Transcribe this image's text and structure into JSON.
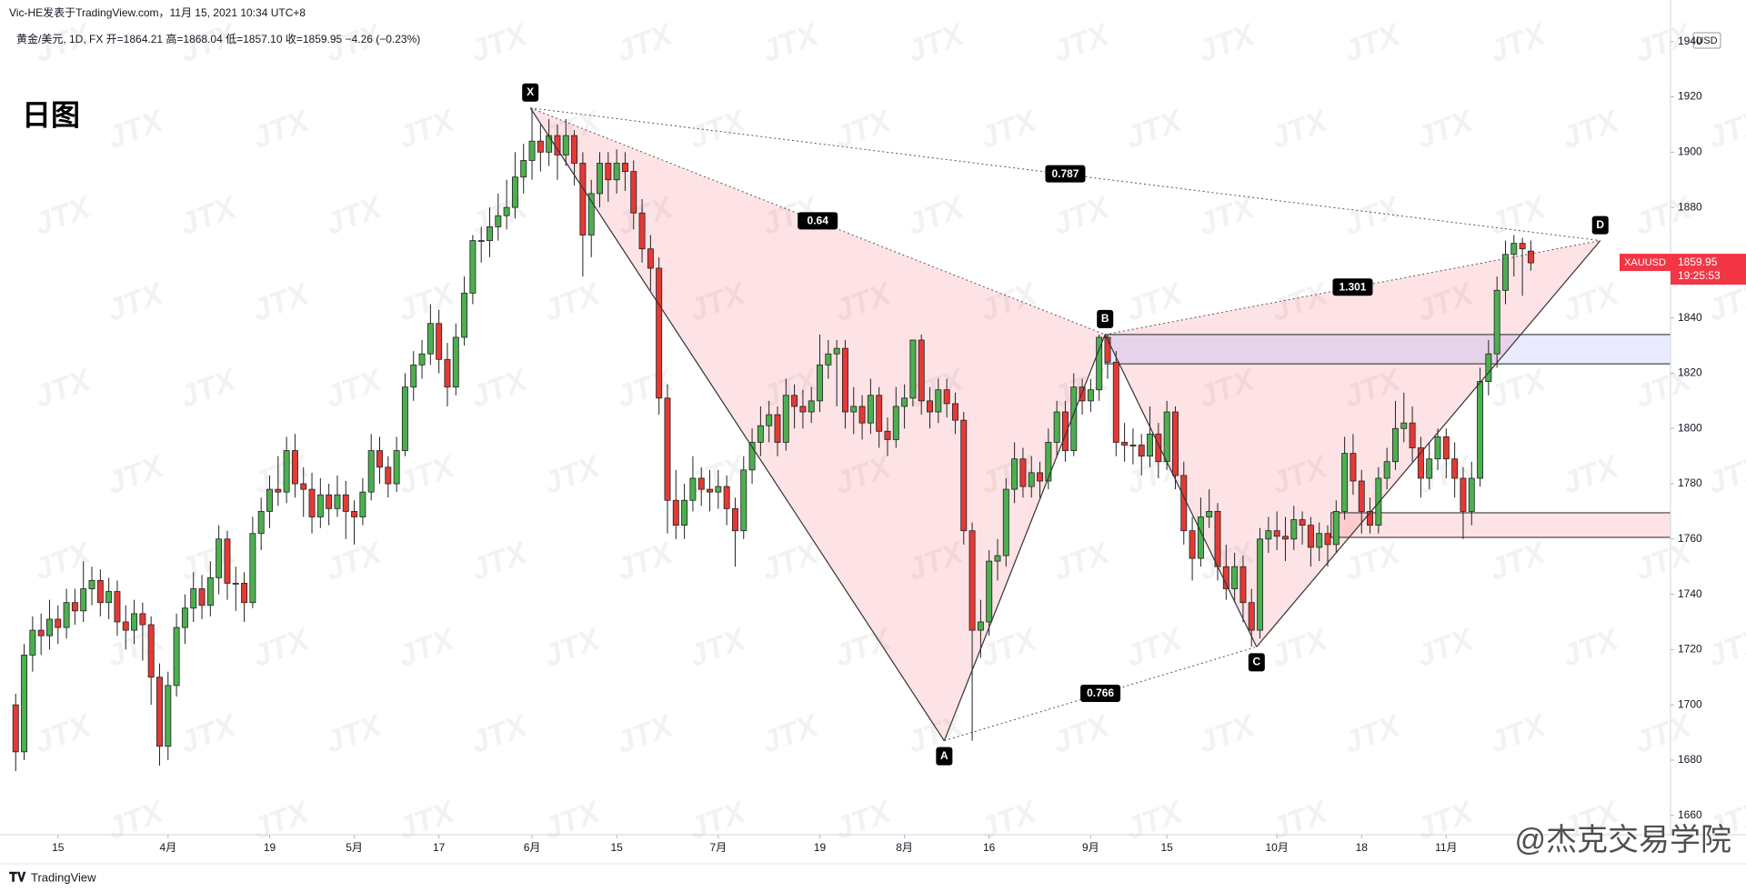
{
  "chart_data": {
    "type": "candlestick",
    "header": "Vic-HE发表于TradingView.com，11月 15, 2021 10:34 UTC+8",
    "legend": "黄金/美元, 1D, FX  开=1864.21 高=1868.04 低=1857.10 收=1859.95 −4.26 (−0.23%)",
    "title": "日图",
    "watermark": "JTX",
    "brand": "TradingView",
    "credit": "@杰克交易学院",
    "currency": "USD",
    "up_color": "#4caf50",
    "down_color": "#e53935",
    "xlim": [
      -0.8,
      195.5
    ],
    "ylim": [
      1653,
      1947
    ],
    "yticks": [
      1660,
      1680,
      1700,
      1720,
      1740,
      1760,
      1780,
      1800,
      1820,
      1840,
      1860,
      1880,
      1900,
      1920,
      1940
    ],
    "xticks": [
      {
        "value": 5,
        "label": "15"
      },
      {
        "value": 18,
        "label": "4月"
      },
      {
        "value": 30,
        "label": "19"
      },
      {
        "value": 40,
        "label": "5月"
      },
      {
        "value": 50,
        "label": "17"
      },
      {
        "value": 61,
        "label": "6月"
      },
      {
        "value": 71,
        "label": "15"
      },
      {
        "value": 83,
        "label": "7月"
      },
      {
        "value": 95,
        "label": "19"
      },
      {
        "value": 105,
        "label": "8月"
      },
      {
        "value": 115,
        "label": "16"
      },
      {
        "value": 127,
        "label": "9月"
      },
      {
        "value": 136,
        "label": "15"
      },
      {
        "value": 149,
        "label": "10月"
      },
      {
        "value": 159,
        "label": "18"
      },
      {
        "value": 169,
        "label": "11月"
      }
    ],
    "candles": [
      [
        1700,
        1704,
        1676,
        1683
      ],
      [
        1683,
        1722,
        1680,
        1718
      ],
      [
        1718,
        1732,
        1712,
        1727
      ],
      [
        1727,
        1733,
        1718,
        1725
      ],
      [
        1725,
        1738,
        1720,
        1731
      ],
      [
        1731,
        1736,
        1722,
        1728
      ],
      [
        1728,
        1742,
        1724,
        1737
      ],
      [
        1737,
        1742,
        1729,
        1734
      ],
      [
        1734,
        1752,
        1730,
        1742
      ],
      [
        1742,
        1750,
        1736,
        1745
      ],
      [
        1745,
        1749,
        1732,
        1737
      ],
      [
        1737,
        1746,
        1731,
        1741
      ],
      [
        1741,
        1745,
        1725,
        1730
      ],
      [
        1730,
        1736,
        1720,
        1727
      ],
      [
        1727,
        1738,
        1722,
        1733
      ],
      [
        1733,
        1737,
        1716,
        1729
      ],
      [
        1729,
        1732,
        1700,
        1710
      ],
      [
        1710,
        1715,
        1678,
        1685
      ],
      [
        1685,
        1712,
        1680,
        1707
      ],
      [
        1707,
        1733,
        1703,
        1728
      ],
      [
        1728,
        1740,
        1722,
        1735
      ],
      [
        1735,
        1748,
        1730,
        1742
      ],
      [
        1742,
        1747,
        1731,
        1736
      ],
      [
        1736,
        1752,
        1732,
        1746
      ],
      [
        1746,
        1765,
        1740,
        1760
      ],
      [
        1760,
        1763,
        1738,
        1744
      ],
      [
        1744,
        1750,
        1734,
        1744
      ],
      [
        1744,
        1748,
        1730,
        1737
      ],
      [
        1737,
        1768,
        1735,
        1762
      ],
      [
        1762,
        1775,
        1756,
        1770
      ],
      [
        1770,
        1783,
        1764,
        1778
      ],
      [
        1778,
        1790,
        1772,
        1777
      ],
      [
        1777,
        1797,
        1773,
        1792
      ],
      [
        1792,
        1798,
        1775,
        1780
      ],
      [
        1780,
        1786,
        1768,
        1778
      ],
      [
        1778,
        1784,
        1762,
        1768
      ],
      [
        1768,
        1782,
        1764,
        1776
      ],
      [
        1776,
        1780,
        1765,
        1771
      ],
      [
        1771,
        1783,
        1768,
        1776
      ],
      [
        1776,
        1781,
        1760,
        1770
      ],
      [
        1770,
        1774,
        1758,
        1768
      ],
      [
        1768,
        1782,
        1765,
        1777
      ],
      [
        1777,
        1798,
        1774,
        1792
      ],
      [
        1792,
        1797,
        1780,
        1786
      ],
      [
        1786,
        1790,
        1775,
        1780
      ],
      [
        1780,
        1797,
        1777,
        1792
      ],
      [
        1792,
        1820,
        1790,
        1815
      ],
      [
        1815,
        1828,
        1810,
        1823
      ],
      [
        1823,
        1832,
        1818,
        1827
      ],
      [
        1827,
        1845,
        1823,
        1838
      ],
      [
        1838,
        1843,
        1820,
        1825
      ],
      [
        1825,
        1831,
        1808,
        1815
      ],
      [
        1815,
        1838,
        1812,
        1833
      ],
      [
        1833,
        1855,
        1830,
        1849
      ],
      [
        1849,
        1870,
        1845,
        1868
      ],
      [
        1868,
        1873,
        1860,
        1868
      ],
      [
        1868,
        1880,
        1862,
        1873
      ],
      [
        1873,
        1885,
        1868,
        1877
      ],
      [
        1877,
        1890,
        1872,
        1880
      ],
      [
        1880,
        1900,
        1876,
        1891
      ],
      [
        1891,
        1903,
        1885,
        1897
      ],
      [
        1897,
        1916,
        1890,
        1904
      ],
      [
        1904,
        1910,
        1893,
        1900
      ],
      [
        1900,
        1912,
        1895,
        1906
      ],
      [
        1906,
        1910,
        1890,
        1899
      ],
      [
        1899,
        1912,
        1895,
        1906
      ],
      [
        1906,
        1908,
        1888,
        1896
      ],
      [
        1896,
        1900,
        1855,
        1870
      ],
      [
        1870,
        1890,
        1862,
        1885
      ],
      [
        1885,
        1900,
        1880,
        1896
      ],
      [
        1896,
        1900,
        1882,
        1890
      ],
      [
        1890,
        1901,
        1885,
        1896
      ],
      [
        1896,
        1900,
        1886,
        1893
      ],
      [
        1893,
        1897,
        1872,
        1878
      ],
      [
        1878,
        1883,
        1860,
        1865
      ],
      [
        1865,
        1870,
        1850,
        1858
      ],
      [
        1858,
        1862,
        1805,
        1811
      ],
      [
        1811,
        1816,
        1762,
        1774
      ],
      [
        1774,
        1785,
        1760,
        1765
      ],
      [
        1765,
        1780,
        1760,
        1774
      ],
      [
        1774,
        1790,
        1770,
        1782
      ],
      [
        1782,
        1786,
        1772,
        1778
      ],
      [
        1778,
        1785,
        1770,
        1777
      ],
      [
        1777,
        1785,
        1771,
        1779
      ],
      [
        1779,
        1783,
        1765,
        1771
      ],
      [
        1771,
        1775,
        1750,
        1763
      ],
      [
        1763,
        1790,
        1760,
        1785
      ],
      [
        1785,
        1800,
        1780,
        1795
      ],
      [
        1795,
        1808,
        1790,
        1801
      ],
      [
        1801,
        1810,
        1795,
        1805
      ],
      [
        1805,
        1808,
        1790,
        1795
      ],
      [
        1795,
        1818,
        1792,
        1812
      ],
      [
        1812,
        1816,
        1800,
        1808
      ],
      [
        1808,
        1814,
        1800,
        1806
      ],
      [
        1806,
        1815,
        1802,
        1810
      ],
      [
        1810,
        1834,
        1806,
        1823
      ],
      [
        1823,
        1832,
        1818,
        1827
      ],
      [
        1827,
        1832,
        1808,
        1829
      ],
      [
        1829,
        1832,
        1800,
        1806
      ],
      [
        1806,
        1815,
        1798,
        1808
      ],
      [
        1808,
        1812,
        1796,
        1802
      ],
      [
        1802,
        1818,
        1798,
        1812
      ],
      [
        1812,
        1815,
        1793,
        1799
      ],
      [
        1799,
        1804,
        1790,
        1796
      ],
      [
        1796,
        1815,
        1793,
        1808
      ],
      [
        1808,
        1816,
        1800,
        1811
      ],
      [
        1811,
        1832,
        1808,
        1832
      ],
      [
        1832,
        1834,
        1805,
        1810
      ],
      [
        1810,
        1815,
        1800,
        1806
      ],
      [
        1806,
        1818,
        1802,
        1814
      ],
      [
        1814,
        1818,
        1804,
        1809
      ],
      [
        1809,
        1813,
        1798,
        1803
      ],
      [
        1803,
        1806,
        1758,
        1763
      ],
      [
        1763,
        1766,
        1687,
        1727
      ],
      [
        1727,
        1738,
        1717,
        1730
      ],
      [
        1730,
        1756,
        1725,
        1752
      ],
      [
        1752,
        1760,
        1745,
        1754
      ],
      [
        1754,
        1782,
        1750,
        1778
      ],
      [
        1778,
        1795,
        1773,
        1789
      ],
      [
        1789,
        1793,
        1775,
        1779
      ],
      [
        1779,
        1790,
        1775,
        1784
      ],
      [
        1784,
        1788,
        1775,
        1781
      ],
      [
        1781,
        1800,
        1778,
        1795
      ],
      [
        1795,
        1810,
        1790,
        1806
      ],
      [
        1806,
        1810,
        1788,
        1792
      ],
      [
        1792,
        1820,
        1790,
        1815
      ],
      [
        1815,
        1818,
        1805,
        1810
      ],
      [
        1810,
        1818,
        1806,
        1814
      ],
      [
        1814,
        1834,
        1810,
        1833
      ],
      [
        1833,
        1834,
        1818,
        1824
      ],
      [
        1824,
        1828,
        1790,
        1795
      ],
      [
        1795,
        1802,
        1788,
        1794
      ],
      [
        1794,
        1800,
        1787,
        1794
      ],
      [
        1794,
        1798,
        1783,
        1790
      ],
      [
        1790,
        1808,
        1786,
        1798
      ],
      [
        1798,
        1802,
        1782,
        1788
      ],
      [
        1788,
        1810,
        1785,
        1806
      ],
      [
        1806,
        1808,
        1778,
        1783
      ],
      [
        1783,
        1788,
        1758,
        1763
      ],
      [
        1763,
        1768,
        1745,
        1753
      ],
      [
        1753,
        1775,
        1750,
        1768
      ],
      [
        1768,
        1778,
        1764,
        1770
      ],
      [
        1770,
        1773,
        1745,
        1750
      ],
      [
        1750,
        1758,
        1738,
        1742
      ],
      [
        1742,
        1755,
        1737,
        1750
      ],
      [
        1750,
        1754,
        1730,
        1737
      ],
      [
        1737,
        1742,
        1721,
        1727
      ],
      [
        1727,
        1764,
        1724,
        1760
      ],
      [
        1760,
        1768,
        1755,
        1763
      ],
      [
        1763,
        1770,
        1756,
        1761
      ],
      [
        1761,
        1768,
        1752,
        1760
      ],
      [
        1760,
        1772,
        1756,
        1767
      ],
      [
        1767,
        1770,
        1758,
        1765
      ],
      [
        1765,
        1768,
        1750,
        1757
      ],
      [
        1757,
        1766,
        1752,
        1762
      ],
      [
        1762,
        1765,
        1750,
        1758
      ],
      [
        1758,
        1774,
        1755,
        1770
      ],
      [
        1770,
        1797,
        1767,
        1791
      ],
      [
        1791,
        1798,
        1776,
        1781
      ],
      [
        1781,
        1785,
        1762,
        1770
      ],
      [
        1770,
        1775,
        1762,
        1765
      ],
      [
        1765,
        1786,
        1762,
        1782
      ],
      [
        1782,
        1793,
        1778,
        1788
      ],
      [
        1788,
        1810,
        1785,
        1800
      ],
      [
        1800,
        1813,
        1795,
        1802
      ],
      [
        1802,
        1808,
        1788,
        1793
      ],
      [
        1793,
        1797,
        1775,
        1782
      ],
      [
        1782,
        1795,
        1778,
        1789
      ],
      [
        1789,
        1800,
        1785,
        1797
      ],
      [
        1797,
        1800,
        1782,
        1789
      ],
      [
        1789,
        1795,
        1775,
        1782
      ],
      [
        1782,
        1786,
        1760,
        1770
      ],
      [
        1770,
        1788,
        1765,
        1782
      ],
      [
        1782,
        1822,
        1779,
        1817
      ],
      [
        1817,
        1832,
        1812,
        1827
      ],
      [
        1827,
        1855,
        1822,
        1850
      ],
      [
        1850,
        1868,
        1845,
        1863
      ],
      [
        1863,
        1870,
        1855,
        1867
      ],
      [
        1867,
        1869,
        1848,
        1865
      ],
      [
        1864.21,
        1868.04,
        1857.1,
        1859.95
      ]
    ],
    "last_price": {
      "symbol": "XAUUSD",
      "value": 1859.95,
      "countdown": "19:25:53",
      "color": "#f23645"
    },
    "pattern": {
      "fill": "rgba(242,54,69,0.14)",
      "points": [
        {
          "label": "X",
          "x": 60.8,
          "y": 1916
        },
        {
          "label": "A",
          "x": 109.7,
          "y": 1687
        },
        {
          "label": "B",
          "x": 128.7,
          "y": 1834
        },
        {
          "label": "C",
          "x": 146.6,
          "y": 1721
        },
        {
          "label": "D",
          "x": 187.2,
          "y": 1868
        }
      ],
      "legs": [
        {
          "from": "X",
          "to": "B",
          "ratio": 0.64
        },
        {
          "from": "X",
          "to": "D",
          "ratio": 0.787
        },
        {
          "from": "A",
          "to": "C",
          "ratio": 0.766
        },
        {
          "from": "B",
          "to": "D",
          "ratio": 1.301
        }
      ]
    },
    "zones": [
      {
        "x_start": 128.7,
        "top": 1834,
        "bottom": 1823.4,
        "fill": "rgba(120,130,255,0.16)"
      },
      {
        "x_start": 155.4,
        "top": 1769.5,
        "bottom": 1760.6,
        "fill": "rgba(242,54,69,0.14)"
      }
    ]
  }
}
